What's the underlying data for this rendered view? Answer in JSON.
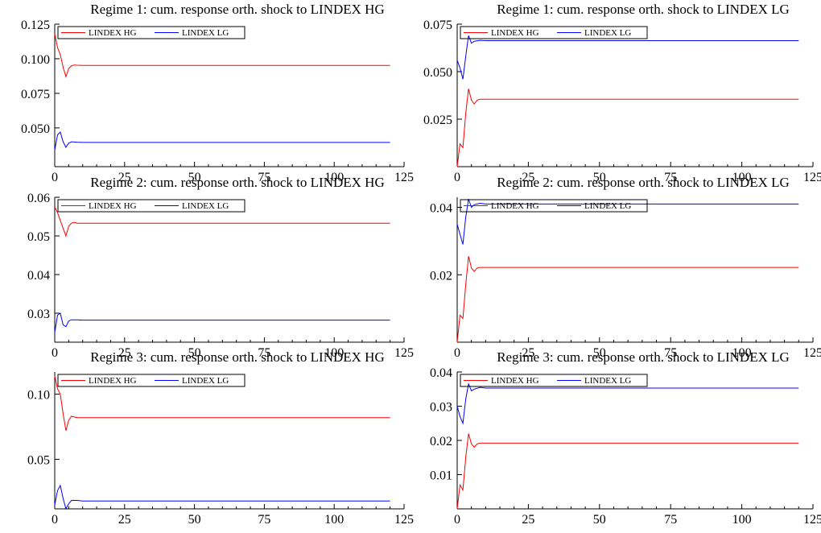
{
  "chart_data": [
    {
      "type": "line",
      "title": "Regime 1: cum. response orth. shock to LINDEX HG",
      "xlim": [
        0,
        125
      ],
      "ylim": [
        0.022,
        0.125
      ],
      "xticks": [
        0,
        25,
        50,
        75,
        100,
        125
      ],
      "xtick_labels": [
        "0",
        "25",
        "50",
        "75",
        "100",
        "125"
      ],
      "yticks": [
        0.05,
        0.075,
        0.1,
        0.125
      ],
      "ytick_labels": [
        "0.050",
        "0.075",
        "0.100",
        "0.125"
      ],
      "legend": "top-left",
      "grid": false,
      "series": [
        {
          "name": "LINDEX HG",
          "color": "#ff0000",
          "x": [
            0,
            1,
            2,
            3,
            4,
            5,
            6,
            7,
            8,
            10,
            120
          ],
          "y": [
            0.118,
            0.108,
            0.103,
            0.094,
            0.087,
            0.093,
            0.095,
            0.0955,
            0.0953,
            0.0952,
            0.0952
          ]
        },
        {
          "name": "LINDEX LG",
          "color": "#0000ff",
          "x": [
            0,
            1,
            2,
            3,
            4,
            5,
            6,
            8,
            10,
            120
          ],
          "y": [
            0.034,
            0.045,
            0.047,
            0.04,
            0.036,
            0.039,
            0.04,
            0.0397,
            0.0395,
            0.0395
          ]
        }
      ]
    },
    {
      "type": "line",
      "title": "Regime 1: cum. response orth. shock to LINDEX LG",
      "xlim": [
        0,
        125
      ],
      "ylim": [
        0.0,
        0.075
      ],
      "xticks": [
        0,
        25,
        50,
        75,
        100,
        125
      ],
      "xtick_labels": [
        "0",
        "25",
        "50",
        "75",
        "100",
        "125"
      ],
      "yticks": [
        0.025,
        0.05,
        0.075
      ],
      "ytick_labels": [
        "0.025",
        "0.050",
        "0.075"
      ],
      "legend": "top-left",
      "grid": false,
      "series": [
        {
          "name": "LINDEX HG",
          "color": "#ff0000",
          "x": [
            0,
            1,
            2,
            3,
            4,
            5,
            6,
            7,
            8,
            10,
            120
          ],
          "y": [
            0.0,
            0.012,
            0.01,
            0.028,
            0.041,
            0.035,
            0.033,
            0.035,
            0.0355,
            0.0355,
            0.0355
          ]
        },
        {
          "name": "LINDEX LG",
          "color": "#0000ff",
          "x": [
            0,
            1,
            2,
            3,
            4,
            5,
            6,
            8,
            10,
            120
          ],
          "y": [
            0.056,
            0.052,
            0.046,
            0.058,
            0.069,
            0.065,
            0.066,
            0.0665,
            0.0663,
            0.0663
          ]
        }
      ]
    },
    {
      "type": "line",
      "title": "Regime 2: cum. response orth. shock to LINDEX HG",
      "xlim": [
        0,
        125
      ],
      "ylim": [
        0.0225,
        0.06
      ],
      "xticks": [
        0,
        25,
        50,
        75,
        100,
        125
      ],
      "xtick_labels": [
        "0",
        "25",
        "50",
        "75",
        "100",
        "125"
      ],
      "yticks": [
        0.03,
        0.04,
        0.05,
        0.06
      ],
      "ytick_labels": [
        "0.03",
        "0.04",
        "0.05",
        "0.06"
      ],
      "legend": "top-left",
      "grid": false,
      "series": [
        {
          "name": "LINDEX HG",
          "color": "#ff0000",
          "x": [
            0,
            1,
            2,
            3,
            4,
            5,
            6,
            7,
            8,
            10,
            120
          ],
          "y": [
            0.0575,
            0.056,
            0.054,
            0.052,
            0.05,
            0.0525,
            0.0533,
            0.0535,
            0.0533,
            0.0533,
            0.0533
          ]
        },
        {
          "name": "LINDEX LG",
          "color": "#0000ff",
          "x": [
            0,
            1,
            2,
            3,
            4,
            5,
            6,
            8,
            10,
            120
          ],
          "y": [
            0.025,
            0.0295,
            0.03,
            0.027,
            0.0265,
            0.028,
            0.0283,
            0.0283,
            0.0282,
            0.0282
          ]
        }
      ]
    },
    {
      "type": "line",
      "title": "Regime 2: cum. response orth. shock to LINDEX LG",
      "xlim": [
        0,
        125
      ],
      "ylim": [
        0.0,
        0.043
      ],
      "xticks": [
        0,
        25,
        50,
        75,
        100,
        125
      ],
      "xtick_labels": [
        "0",
        "25",
        "50",
        "75",
        "100",
        "125"
      ],
      "yticks": [
        0.02,
        0.04
      ],
      "ytick_labels": [
        "0.02",
        "0.04"
      ],
      "legend": "top-left",
      "grid": false,
      "series": [
        {
          "name": "LINDEX HG",
          "color": "#ff0000",
          "x": [
            0,
            1,
            2,
            3,
            4,
            5,
            6,
            7,
            8,
            10,
            120
          ],
          "y": [
            0.0,
            0.008,
            0.007,
            0.017,
            0.0255,
            0.022,
            0.021,
            0.022,
            0.0222,
            0.0222,
            0.0222
          ]
        },
        {
          "name": "LINDEX LG",
          "color": "#0000ff",
          "x": [
            0,
            1,
            2,
            3,
            4,
            5,
            6,
            8,
            10,
            120
          ],
          "y": [
            0.035,
            0.032,
            0.029,
            0.037,
            0.0425,
            0.04,
            0.0408,
            0.0412,
            0.041,
            0.041
          ]
        }
      ]
    },
    {
      "type": "line",
      "title": "Regime 3: cum. response orth. shock to LINDEX HG",
      "xlim": [
        0,
        125
      ],
      "ylim": [
        0.012,
        0.117
      ],
      "xticks": [
        0,
        25,
        50,
        75,
        100,
        125
      ],
      "xtick_labels": [
        "0",
        "25",
        "50",
        "75",
        "100",
        "125"
      ],
      "yticks": [
        0.05,
        0.1
      ],
      "ytick_labels": [
        "0.05",
        "0.10"
      ],
      "legend": "top-left",
      "grid": false,
      "series": [
        {
          "name": "LINDEX HG",
          "color": "#ff0000",
          "x": [
            0,
            1,
            2,
            3,
            4,
            5,
            6,
            7,
            8,
            10,
            120
          ],
          "y": [
            0.114,
            0.104,
            0.1,
            0.085,
            0.072,
            0.08,
            0.083,
            0.0825,
            0.082,
            0.082,
            0.082
          ]
        },
        {
          "name": "LINDEX LG",
          "color": "#0000ff",
          "x": [
            0,
            1,
            2,
            3,
            4,
            5,
            6,
            8,
            10,
            120
          ],
          "y": [
            0.015,
            0.026,
            0.03,
            0.02,
            0.012,
            0.016,
            0.0185,
            0.0185,
            0.018,
            0.018
          ]
        }
      ]
    },
    {
      "type": "line",
      "title": "Regime 3: cum. response orth. shock to LINDEX LG",
      "xlim": [
        0,
        125
      ],
      "ylim": [
        0.0,
        0.04
      ],
      "xticks": [
        0,
        25,
        50,
        75,
        100,
        125
      ],
      "xtick_labels": [
        "0",
        "25",
        "50",
        "75",
        "100",
        "125"
      ],
      "yticks": [
        0.01,
        0.02,
        0.03,
        0.04
      ],
      "ytick_labels": [
        "0.01",
        "0.02",
        "0.03",
        "0.04"
      ],
      "legend": "top-left",
      "grid": false,
      "series": [
        {
          "name": "LINDEX HG",
          "color": "#ff0000",
          "x": [
            0,
            1,
            2,
            3,
            4,
            5,
            6,
            7,
            8,
            10,
            120
          ],
          "y": [
            0.0,
            0.007,
            0.0055,
            0.015,
            0.022,
            0.019,
            0.018,
            0.019,
            0.0192,
            0.0192,
            0.0192
          ]
        },
        {
          "name": "LINDEX LG",
          "color": "#0000ff",
          "x": [
            0,
            1,
            2,
            3,
            4,
            5,
            6,
            8,
            10,
            120
          ],
          "y": [
            0.03,
            0.027,
            0.025,
            0.032,
            0.0365,
            0.0345,
            0.035,
            0.0355,
            0.0353,
            0.0353
          ]
        }
      ]
    }
  ]
}
